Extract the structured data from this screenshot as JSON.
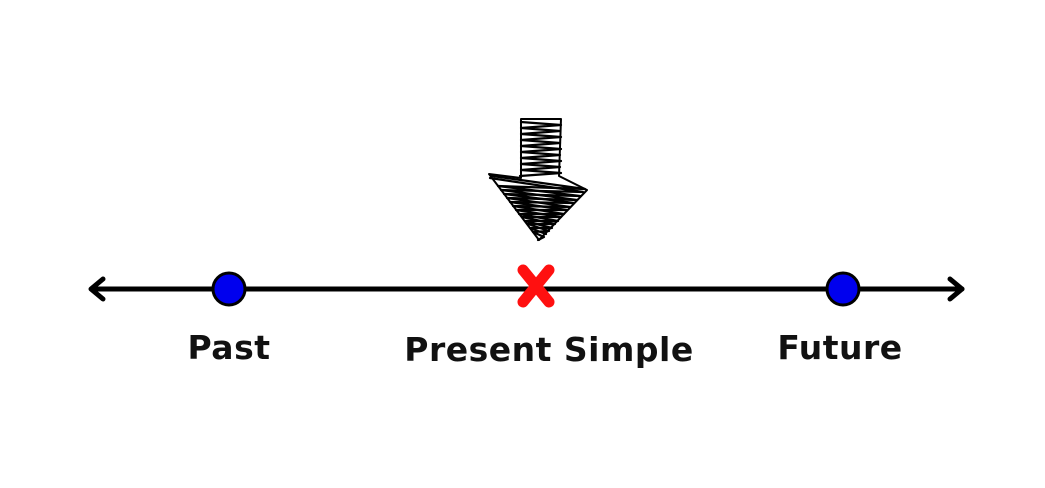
{
  "timeline": {
    "points": [
      {
        "label": "Past",
        "marker": "circle",
        "color": "#0000ee"
      },
      {
        "label": "Present Simple",
        "marker": "cross",
        "color": "#ff0000"
      },
      {
        "label": "Future",
        "marker": "circle",
        "color": "#0000ee"
      }
    ],
    "line_color": "#000000",
    "pointer": {
      "icon": "scribbled-down-arrow-icon",
      "color": "#000000"
    }
  }
}
